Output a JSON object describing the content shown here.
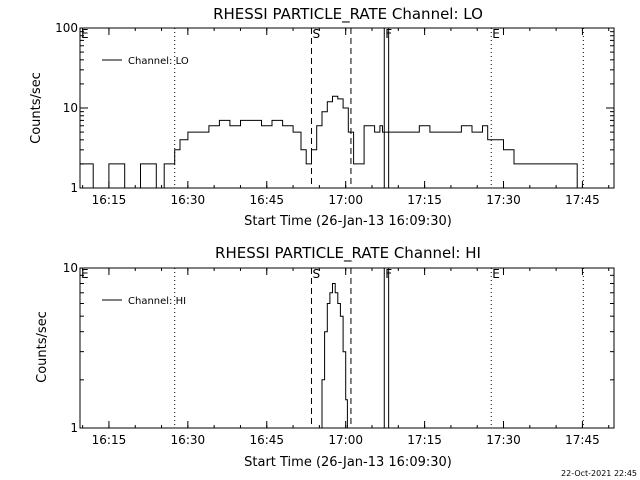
{
  "timestamp": "22-Oct-2021 22:45",
  "chart_data": [
    {
      "type": "line",
      "title": "RHESSI PARTICLE_RATE Channel: LO",
      "xlabel": "Start Time (26-Jan-13 16:09:30)",
      "ylabel": "Counts/sec",
      "yscale": "log",
      "ylim": [
        1,
        100
      ],
      "xlim": [
        "16:09:30",
        "17:51:00"
      ],
      "x_ticks": [
        "16:15",
        "16:30",
        "16:45",
        "17:00",
        "17:15",
        "17:30",
        "17:45"
      ],
      "y_ticks": [
        "1",
        "10",
        "100"
      ],
      "legend": {
        "entries": [
          "Channel: LO"
        ],
        "placement": "top-left"
      },
      "event_markers": [
        {
          "label": "E",
          "time": "16:09:30",
          "style": "dotted"
        },
        {
          "label": "",
          "time": "16:27:30",
          "style": "dotted"
        },
        {
          "label": "S",
          "time": "16:53:30",
          "style": "dashed"
        },
        {
          "label": "",
          "time": "17:01:00",
          "style": "dashed"
        },
        {
          "label": "F",
          "time": "17:07:20",
          "style": "solid"
        },
        {
          "label": "",
          "time": "17:08:10",
          "style": "solid"
        },
        {
          "label": "E",
          "time": "17:27:40",
          "style": "dotted"
        },
        {
          "label": "",
          "time": "17:45:10",
          "style": "dotted"
        }
      ],
      "series": [
        {
          "name": "Channel: LO",
          "x": [
            "16:09:30",
            "16:12:00",
            "16:15:00",
            "16:18:00",
            "16:21:00",
            "16:24:00",
            "16:25:30",
            "16:27:00",
            "16:27:30",
            "16:28:30",
            "16:30:00",
            "16:32:00",
            "16:34:00",
            "16:36:00",
            "16:38:00",
            "16:40:00",
            "16:42:00",
            "16:44:00",
            "16:46:00",
            "16:48:00",
            "16:50:00",
            "16:51:30",
            "16:52:30",
            "16:53:30",
            "16:54:30",
            "16:55:30",
            "16:56:30",
            "16:57:30",
            "16:58:30",
            "16:59:30",
            "17:00:30",
            "17:01:30",
            "17:02:30",
            "17:03:30",
            "17:04:30",
            "17:05:30",
            "17:06:30",
            "17:07:00",
            "17:08:30",
            "17:10:00",
            "17:12:00",
            "17:14:00",
            "17:16:00",
            "17:18:00",
            "17:20:00",
            "17:22:00",
            "17:24:00",
            "17:26:00",
            "17:27:00",
            "17:28:30",
            "17:30:00",
            "17:32:00",
            "17:34:00",
            "17:36:00",
            "17:38:00",
            "17:40:00",
            "17:42:00",
            "17:44:00",
            "17:45:00"
          ],
          "values": [
            2,
            1,
            2,
            1,
            2,
            1,
            2,
            2,
            3,
            4,
            5,
            5,
            6,
            7,
            6,
            7,
            7,
            6,
            7,
            6,
            5,
            3,
            2,
            3,
            6,
            9,
            12,
            14,
            13,
            10,
            5,
            2,
            2,
            6,
            6,
            5,
            6,
            5,
            5,
            5,
            5,
            6,
            5,
            5,
            5,
            6,
            5,
            6,
            4,
            4,
            3,
            2,
            2,
            2,
            2,
            2,
            2,
            1,
            1
          ]
        }
      ]
    },
    {
      "type": "line",
      "title": "RHESSI PARTICLE_RATE Channel: HI",
      "xlabel": "Start Time (26-Jan-13 16:09:30)",
      "ylabel": "Counts/sec",
      "yscale": "log",
      "ylim": [
        1,
        10
      ],
      "xlim": [
        "16:09:30",
        "17:51:00"
      ],
      "x_ticks": [
        "16:15",
        "16:30",
        "16:45",
        "17:00",
        "17:15",
        "17:30",
        "17:45"
      ],
      "y_ticks": [
        "1",
        "10"
      ],
      "legend": {
        "entries": [
          "Channel: HI"
        ],
        "placement": "top-left"
      },
      "event_markers": [
        {
          "label": "E",
          "time": "16:09:30",
          "style": "dotted"
        },
        {
          "label": "",
          "time": "16:27:30",
          "style": "dotted"
        },
        {
          "label": "S",
          "time": "16:53:30",
          "style": "dashed"
        },
        {
          "label": "",
          "time": "17:01:00",
          "style": "dashed"
        },
        {
          "label": "F",
          "time": "17:07:20",
          "style": "solid"
        },
        {
          "label": "",
          "time": "17:08:10",
          "style": "solid"
        },
        {
          "label": "E",
          "time": "17:27:40",
          "style": "dotted"
        },
        {
          "label": "",
          "time": "17:45:10",
          "style": "dotted"
        }
      ],
      "series": [
        {
          "name": "Channel: HI",
          "x": [
            "16:55:00",
            "16:55:30",
            "16:56:00",
            "16:56:30",
            "16:57:00",
            "16:57:30",
            "16:58:00",
            "16:58:30",
            "16:59:00",
            "16:59:30",
            "17:00:00",
            "17:00:20"
          ],
          "values": [
            1,
            2,
            4,
            6,
            7,
            8,
            7,
            6,
            5,
            3,
            1.5,
            1
          ]
        }
      ]
    }
  ]
}
